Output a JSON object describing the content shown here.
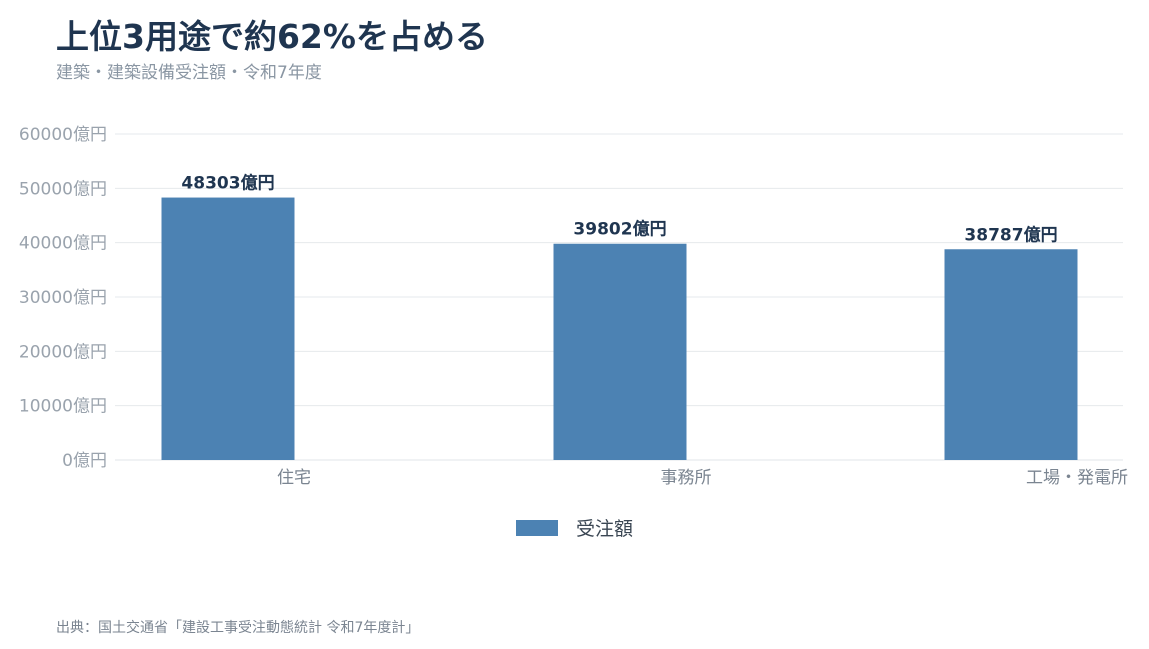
{
  "title": "上位3用途で約62%を占める",
  "subtitle": "建築・建築設備受注額・令和7年度",
  "source": "出典：国土交通省「建設工事受注動態統計 令和7年度計」",
  "chart_data": {
    "type": "bar",
    "categories": [
      "住宅",
      "事務所",
      "工場・発電所"
    ],
    "series": [
      {
        "name": "受注額",
        "values": [
          48303,
          39802,
          38787
        ],
        "color": "#4c82b3"
      }
    ],
    "data_labels": [
      "48303億円",
      "39802億円",
      "38787億円"
    ],
    "unit": "億円",
    "ylim": [
      0,
      60000
    ],
    "yticks": [
      0,
      10000,
      20000,
      30000,
      40000,
      50000,
      60000
    ],
    "ytick_labels": [
      "0億円",
      "10000億円",
      "20000億円",
      "30000億円",
      "40000億円",
      "50000億円",
      "60000億円"
    ],
    "grid": true,
    "legend_position": "bottom-center"
  }
}
